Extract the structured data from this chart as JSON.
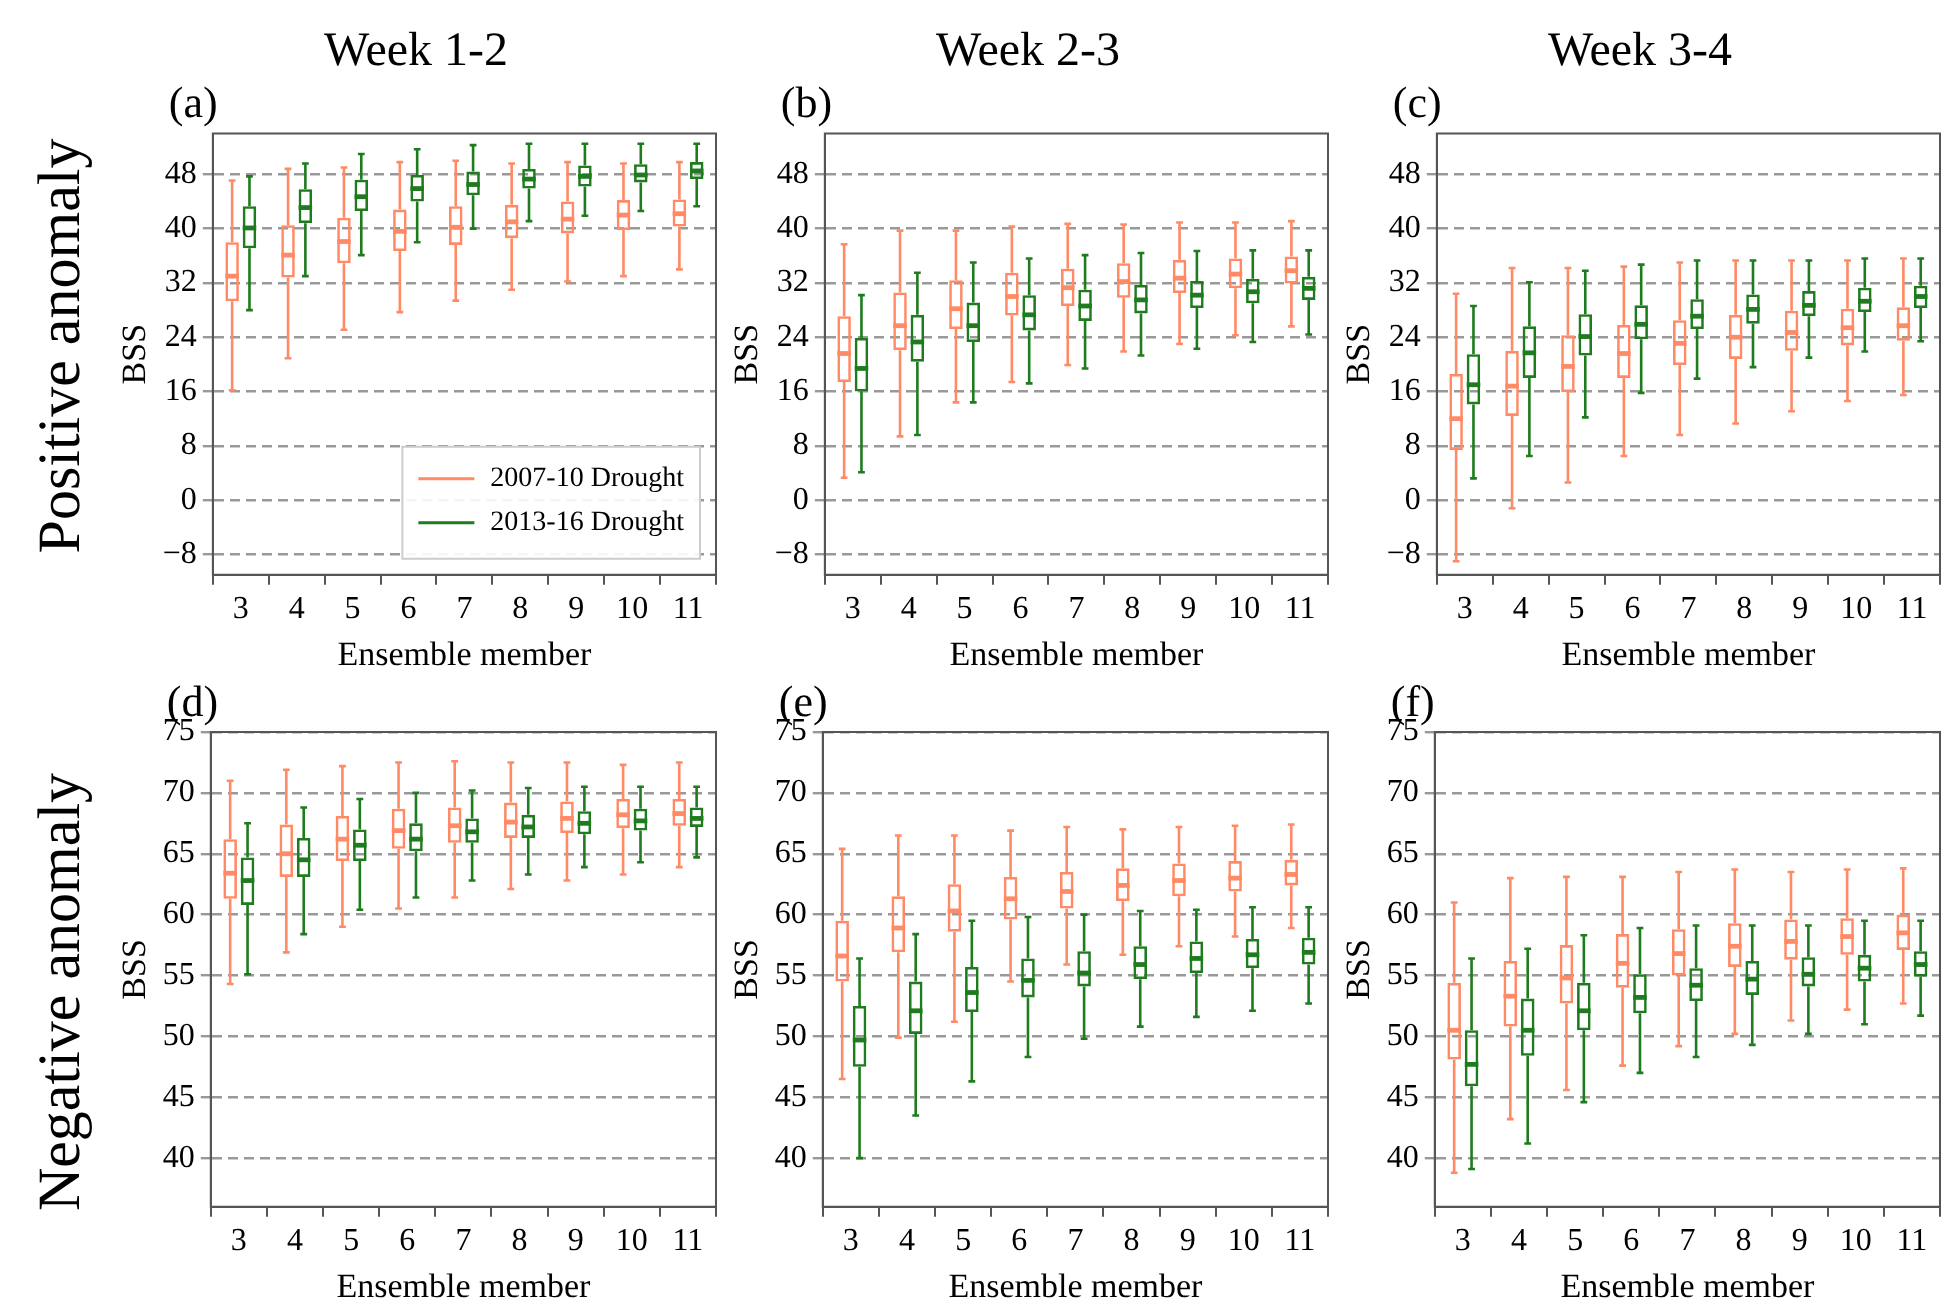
{
  "chart_data": [
    {
      "type": "box",
      "title": "Week 1-2",
      "annotations": [
        "(a)",
        "Positive anomaly"
      ],
      "xlabel": "Ensemble member",
      "ylabel": "BSS",
      "categories": [
        "3",
        "4",
        "5",
        "6",
        "7",
        "8",
        "9",
        "10",
        "11"
      ],
      "ylim": [
        -11,
        54
      ],
      "yticks": [
        -8,
        0,
        8,
        16,
        24,
        32,
        40,
        48
      ],
      "grid": "y",
      "legend": "bottom right",
      "series": [
        {
          "name": "2007-10 Drought",
          "color": "#ff8a65",
          "boxes": [
            {
              "low": 16.2,
              "q1": 29.3,
              "median": 33,
              "q3": 38,
              "high": 47.1
            },
            {
              "low": 20.9,
              "q1": 32.8,
              "median": 36.1,
              "q3": 40.5,
              "high": 48.8
            },
            {
              "low": 25.1,
              "q1": 34.9,
              "median": 38.1,
              "q3": 41.6,
              "high": 49
            },
            {
              "low": 27.7,
              "q1": 36.7,
              "median": 39.6,
              "q3": 42.8,
              "high": 49.8
            },
            {
              "low": 29.4,
              "q1": 37.6,
              "median": 40.2,
              "q3": 43.3,
              "high": 50
            },
            {
              "low": 31,
              "q1": 38.6,
              "median": 41,
              "q3": 43.5,
              "high": 49.6
            },
            {
              "low": 32.2,
              "q1": 39.3,
              "median": 41.4,
              "q3": 44,
              "high": 49.8
            },
            {
              "low": 33,
              "q1": 39.8,
              "median": 42,
              "q3": 44.2,
              "high": 49.6
            },
            {
              "low": 34,
              "q1": 40.3,
              "median": 42.2,
              "q3": 44.3,
              "high": 49.8
            }
          ]
        },
        {
          "name": "2013-16 Drought",
          "color": "#1e7b1e",
          "boxes": [
            {
              "low": 28,
              "q1": 37.1,
              "median": 40.1,
              "q3": 43.3,
              "high": 47.7
            },
            {
              "low": 33,
              "q1": 40.8,
              "median": 43.1,
              "q3": 45.8,
              "high": 49.6
            },
            {
              "low": 36.1,
              "q1": 42.6,
              "median": 44.7,
              "q3": 47.2,
              "high": 51
            },
            {
              "low": 38,
              "q1": 44,
              "median": 45.9,
              "q3": 47.9,
              "high": 51.7
            },
            {
              "low": 40,
              "q1": 44.9,
              "median": 46.5,
              "q3": 48.4,
              "high": 52.3
            },
            {
              "low": 41.1,
              "q1": 45.9,
              "median": 47.3,
              "q3": 48.8,
              "high": 52.5
            },
            {
              "low": 41.9,
              "q1": 46.2,
              "median": 47.7,
              "q3": 49.3,
              "high": 52.5
            },
            {
              "low": 42.6,
              "q1": 46.8,
              "median": 47.9,
              "q3": 49.5,
              "high": 52.5
            },
            {
              "low": 43.3,
              "q1": 47.3,
              "median": 48.5,
              "q3": 49.8,
              "high": 52.5
            }
          ]
        }
      ]
    },
    {
      "type": "box",
      "title": "Week 2-3",
      "annotations": [
        "(b)"
      ],
      "xlabel": "Ensemble member",
      "ylabel": "BSS",
      "categories": [
        "3",
        "4",
        "5",
        "6",
        "7",
        "8",
        "9",
        "10",
        "11"
      ],
      "ylim": [
        -11,
        54
      ],
      "yticks": [
        -8,
        0,
        8,
        16,
        24,
        32,
        40,
        48
      ],
      "grid": "y",
      "series": [
        {
          "color": "#ff8a65",
          "boxes": [
            {
              "low": 3.3,
              "q1": 17.4,
              "median": 21.6,
              "q3": 27.1,
              "high": 37.7
            },
            {
              "low": 9.4,
              "q1": 22.1,
              "median": 25.7,
              "q3": 30.6,
              "high": 39.7
            },
            {
              "low": 14.4,
              "q1": 25.2,
              "median": 28.2,
              "q3": 32.4,
              "high": 39.7
            },
            {
              "low": 17.4,
              "q1": 27.2,
              "median": 30,
              "q3": 33.5,
              "high": 40.3
            },
            {
              "low": 19.9,
              "q1": 28.6,
              "median": 31.3,
              "q3": 34.1,
              "high": 40.7
            },
            {
              "low": 21.9,
              "q1": 29.8,
              "median": 32.2,
              "q3": 34.9,
              "high": 40.6
            },
            {
              "low": 23,
              "q1": 30.5,
              "median": 32.7,
              "q3": 35.4,
              "high": 40.9
            },
            {
              "low": 24.3,
              "q1": 31.2,
              "median": 33.3,
              "q3": 35.6,
              "high": 40.9
            },
            {
              "low": 25.6,
              "q1": 31.9,
              "median": 33.8,
              "q3": 35.9,
              "high": 41.1
            }
          ]
        },
        {
          "color": "#1e7b1e",
          "boxes": [
            {
              "low": 4.1,
              "q1": 16,
              "median": 19.4,
              "q3": 23.9,
              "high": 30.2
            },
            {
              "low": 9.6,
              "q1": 20.4,
              "median": 23.3,
              "q3": 27.3,
              "high": 33.5
            },
            {
              "low": 14.4,
              "q1": 23.3,
              "median": 25.7,
              "q3": 29.1,
              "high": 35
            },
            {
              "low": 17.2,
              "q1": 25,
              "median": 27.3,
              "q3": 30.2,
              "high": 35.6
            },
            {
              "low": 19.4,
              "q1": 26.4,
              "median": 28.6,
              "q3": 31,
              "high": 36.1
            },
            {
              "low": 21.3,
              "q1": 27.5,
              "median": 29.5,
              "q3": 31.7,
              "high": 36.4
            },
            {
              "low": 22.3,
              "q1": 28.3,
              "median": 30.2,
              "q3": 32.3,
              "high": 36.7
            },
            {
              "low": 23.3,
              "q1": 29,
              "median": 30.7,
              "q3": 32.6,
              "high": 36.8
            },
            {
              "low": 24.4,
              "q1": 29.5,
              "median": 31.2,
              "q3": 32.9,
              "high": 36.8
            }
          ]
        }
      ]
    },
    {
      "type": "box",
      "title": "Week 3-4",
      "annotations": [
        "(c)"
      ],
      "xlabel": "Ensemble member",
      "ylabel": "BSS",
      "categories": [
        "3",
        "4",
        "5",
        "6",
        "7",
        "8",
        "9",
        "10",
        "11"
      ],
      "ylim": [
        -11,
        54
      ],
      "yticks": [
        -8,
        0,
        8,
        16,
        24,
        32,
        40,
        48
      ],
      "grid": "y",
      "series": [
        {
          "color": "#ff8a65",
          "boxes": [
            {
              "low": -9,
              "q1": 7.4,
              "median": 12,
              "q3": 18.6,
              "high": 30.4
            },
            {
              "low": -1.2,
              "q1": 12.4,
              "median": 16.8,
              "q3": 22,
              "high": 34.2
            },
            {
              "low": 2.6,
              "q1": 15.9,
              "median": 19.7,
              "q3": 24.3,
              "high": 34.2
            },
            {
              "low": 6.5,
              "q1": 18,
              "median": 21.6,
              "q3": 25.8,
              "high": 34.4
            },
            {
              "low": 9.6,
              "q1": 19.9,
              "median": 23.1,
              "q3": 26.5,
              "high": 35
            },
            {
              "low": 11.3,
              "q1": 20.8,
              "median": 24,
              "q3": 27.3,
              "high": 35.3
            },
            {
              "low": 13.1,
              "q1": 22,
              "median": 24.7,
              "q3": 27.9,
              "high": 35.3
            },
            {
              "low": 14.6,
              "q1": 22.8,
              "median": 25.4,
              "q3": 28.2,
              "high": 35.3
            },
            {
              "low": 15.5,
              "q1": 23.5,
              "median": 25.7,
              "q3": 28.4,
              "high": 35.6
            }
          ]
        },
        {
          "color": "#1e7b1e",
          "boxes": [
            {
              "low": 3.2,
              "q1": 14.1,
              "median": 17,
              "q3": 21.5,
              "high": 28.6
            },
            {
              "low": 6.5,
              "q1": 18,
              "median": 21.7,
              "q3": 25.6,
              "high": 32.1
            },
            {
              "low": 12.2,
              "q1": 21.3,
              "median": 24.1,
              "q3": 27.4,
              "high": 33.8
            },
            {
              "low": 15.8,
              "q1": 23.7,
              "median": 25.9,
              "q3": 28.7,
              "high": 34.7
            },
            {
              "low": 17.9,
              "q1": 25.2,
              "median": 27.1,
              "q3": 29.6,
              "high": 35.3
            },
            {
              "low": 19.6,
              "q1": 26,
              "median": 28.1,
              "q3": 30.3,
              "high": 35.3
            },
            {
              "low": 21,
              "q1": 27.1,
              "median": 28.7,
              "q3": 30.8,
              "high": 35.3
            },
            {
              "low": 21.9,
              "q1": 27.7,
              "median": 29.3,
              "q3": 31.3,
              "high": 35.6
            },
            {
              "low": 23.4,
              "q1": 28.3,
              "median": 30,
              "q3": 31.6,
              "high": 35.6
            }
          ]
        }
      ]
    },
    {
      "type": "box",
      "annotations": [
        "(d)",
        "Negative anomaly"
      ],
      "xlabel": "Ensemble member",
      "ylabel": "BSS",
      "categories": [
        "3",
        "4",
        "5",
        "6",
        "7",
        "8",
        "9",
        "10",
        "11"
      ],
      "ylim": [
        36,
        75
      ],
      "yticks": [
        40,
        45,
        50,
        55,
        60,
        65,
        70,
        75
      ],
      "grid": "y",
      "series": [
        {
          "color": "#ff8a65",
          "boxes": [
            {
              "low": 54.3,
              "q1": 61.3,
              "median": 63.4,
              "q3": 66.2,
              "high": 71
            },
            {
              "low": 56.9,
              "q1": 63.1,
              "median": 65,
              "q3": 67.4,
              "high": 71.9
            },
            {
              "low": 59,
              "q1": 64.4,
              "median": 66.2,
              "q3": 68.1,
              "high": 72.2
            },
            {
              "low": 60.5,
              "q1": 65.4,
              "median": 66.9,
              "q3": 68.7,
              "high": 72.5
            },
            {
              "low": 61.4,
              "q1": 65.9,
              "median": 67.3,
              "q3": 68.8,
              "high": 72.6
            },
            {
              "low": 62.1,
              "q1": 66.3,
              "median": 67.6,
              "q3": 69.2,
              "high": 72.5
            },
            {
              "low": 62.8,
              "q1": 66.7,
              "median": 67.9,
              "q3": 69.3,
              "high": 72.5
            },
            {
              "low": 63.3,
              "q1": 67.1,
              "median": 68.2,
              "q3": 69.5,
              "high": 72.3
            },
            {
              "low": 63.9,
              "q1": 67.3,
              "median": 68.3,
              "q3": 69.5,
              "high": 72.5
            }
          ]
        },
        {
          "color": "#1e7b1e",
          "boxes": [
            {
              "low": 55.1,
              "q1": 60.8,
              "median": 62.8,
              "q3": 64.7,
              "high": 67.5
            },
            {
              "low": 58.4,
              "q1": 63.1,
              "median": 64.5,
              "q3": 66.3,
              "high": 68.8
            },
            {
              "low": 60.4,
              "q1": 64.4,
              "median": 65.7,
              "q3": 67,
              "high": 69.5
            },
            {
              "low": 61.4,
              "q1": 65.2,
              "median": 66.2,
              "q3": 67.5,
              "high": 70
            },
            {
              "low": 62.8,
              "q1": 65.9,
              "median": 66.8,
              "q3": 67.9,
              "high": 70.2
            },
            {
              "low": 63.3,
              "q1": 66.3,
              "median": 67.2,
              "q3": 68.2,
              "high": 70.4
            },
            {
              "low": 63.9,
              "q1": 66.6,
              "median": 67.5,
              "q3": 68.5,
              "high": 70.5
            },
            {
              "low": 64.3,
              "q1": 66.9,
              "median": 67.7,
              "q3": 68.7,
              "high": 70.5
            },
            {
              "low": 64.7,
              "q1": 67.2,
              "median": 67.9,
              "q3": 68.8,
              "high": 70.5
            }
          ]
        }
      ]
    },
    {
      "type": "box",
      "annotations": [
        "(e)"
      ],
      "xlabel": "Ensemble member",
      "ylabel": "BSS",
      "categories": [
        "3",
        "4",
        "5",
        "6",
        "7",
        "8",
        "9",
        "10",
        "11"
      ],
      "ylim": [
        36,
        75
      ],
      "yticks": [
        40,
        45,
        50,
        55,
        60,
        65,
        70,
        75
      ],
      "grid": "y",
      "series": [
        {
          "color": "#ff8a65",
          "boxes": [
            {
              "low": 46.5,
              "q1": 54.5,
              "median": 56.6,
              "q3": 59.5,
              "high": 65.4
            },
            {
              "low": 49.9,
              "q1": 56.9,
              "median": 58.9,
              "q3": 61.5,
              "high": 66.5
            },
            {
              "low": 51.2,
              "q1": 58.6,
              "median": 60.3,
              "q3": 62.5,
              "high": 66.5
            },
            {
              "low": 54.5,
              "q1": 59.6,
              "median": 61.3,
              "q3": 63.1,
              "high": 66.9
            },
            {
              "low": 55.9,
              "q1": 60.5,
              "median": 61.9,
              "q3": 63.5,
              "high": 67.2
            },
            {
              "low": 56.7,
              "q1": 61.1,
              "median": 62.4,
              "q3": 63.8,
              "high": 67
            },
            {
              "low": 57.4,
              "q1": 61.5,
              "median": 62.8,
              "q3": 64.2,
              "high": 67.2
            },
            {
              "low": 58.2,
              "q1": 61.9,
              "median": 63,
              "q3": 64.4,
              "high": 67.3
            },
            {
              "low": 58.9,
              "q1": 62.4,
              "median": 63.3,
              "q3": 64.5,
              "high": 67.4
            }
          ]
        },
        {
          "color": "#1e7b1e",
          "boxes": [
            {
              "low": 40,
              "q1": 47.5,
              "median": 49.7,
              "q3": 52.5,
              "high": 56.4
            },
            {
              "low": 43.5,
              "q1": 50.2,
              "median": 52.1,
              "q3": 54.5,
              "high": 58.4
            },
            {
              "low": 46.3,
              "q1": 52,
              "median": 53.6,
              "q3": 55.7,
              "high": 59.5
            },
            {
              "low": 48.3,
              "q1": 53.2,
              "median": 54.6,
              "q3": 56.4,
              "high": 59.8
            },
            {
              "low": 49.8,
              "q1": 54.1,
              "median": 55.2,
              "q3": 57,
              "high": 60
            },
            {
              "low": 50.8,
              "q1": 54.7,
              "median": 55.9,
              "q3": 57.4,
              "high": 60.3
            },
            {
              "low": 51.6,
              "q1": 55.2,
              "median": 56.4,
              "q3": 57.8,
              "high": 60.4
            },
            {
              "low": 52.1,
              "q1": 55.6,
              "median": 56.7,
              "q3": 58,
              "high": 60.6
            },
            {
              "low": 52.7,
              "q1": 55.9,
              "median": 56.9,
              "q3": 58.1,
              "high": 60.6
            }
          ]
        }
      ]
    },
    {
      "type": "box",
      "annotations": [
        "(f)"
      ],
      "xlabel": "Ensemble member",
      "ylabel": "BSS",
      "categories": [
        "3",
        "4",
        "5",
        "6",
        "7",
        "8",
        "9",
        "10",
        "11"
      ],
      "ylim": [
        36,
        75
      ],
      "yticks": [
        40,
        45,
        50,
        55,
        60,
        65,
        70,
        75
      ],
      "grid": "y",
      "series": [
        {
          "color": "#ff8a65",
          "boxes": [
            {
              "low": 38.8,
              "q1": 48.1,
              "median": 50.5,
              "q3": 54.4,
              "high": 61
            },
            {
              "low": 43.2,
              "q1": 50.8,
              "median": 53.3,
              "q3": 56.2,
              "high": 63
            },
            {
              "low": 45.6,
              "q1": 52.7,
              "median": 54.8,
              "q3": 57.5,
              "high": 63.1
            },
            {
              "low": 47.6,
              "q1": 54,
              "median": 56,
              "q3": 58.4,
              "high": 63.1
            },
            {
              "low": 49.2,
              "q1": 55,
              "median": 56.8,
              "q3": 58.8,
              "high": 63.5
            },
            {
              "low": 50.2,
              "q1": 55.7,
              "median": 57.4,
              "q3": 59.3,
              "high": 63.7
            },
            {
              "low": 51.3,
              "q1": 56.3,
              "median": 57.8,
              "q3": 59.6,
              "high": 63.5
            },
            {
              "low": 52.2,
              "q1": 56.7,
              "median": 58.2,
              "q3": 59.7,
              "high": 63.7
            },
            {
              "low": 52.7,
              "q1": 57.1,
              "median": 58.5,
              "q3": 60,
              "high": 63.8
            }
          ]
        },
        {
          "color": "#1e7b1e",
          "boxes": [
            {
              "low": 39.1,
              "q1": 45.9,
              "median": 47.7,
              "q3": 50.5,
              "high": 56.4
            },
            {
              "low": 41.2,
              "q1": 48.4,
              "median": 50.5,
              "q3": 53.1,
              "high": 57.2
            },
            {
              "low": 44.6,
              "q1": 50.5,
              "median": 52.1,
              "q3": 54.4,
              "high": 58.3
            },
            {
              "low": 47,
              "q1": 51.9,
              "median": 53.2,
              "q3": 55.1,
              "high": 58.9
            },
            {
              "low": 48.3,
              "q1": 52.9,
              "median": 54.2,
              "q3": 55.6,
              "high": 59.1
            },
            {
              "low": 49.3,
              "q1": 53.4,
              "median": 54.7,
              "q3": 56.2,
              "high": 59.1
            },
            {
              "low": 50.2,
              "q1": 54.1,
              "median": 55.1,
              "q3": 56.5,
              "high": 59.1
            },
            {
              "low": 51,
              "q1": 54.5,
              "median": 55.6,
              "q3": 56.7,
              "high": 59.5
            },
            {
              "low": 51.7,
              "q1": 54.9,
              "median": 55.9,
              "q3": 57,
              "high": 59.5
            }
          ]
        }
      ]
    }
  ]
}
